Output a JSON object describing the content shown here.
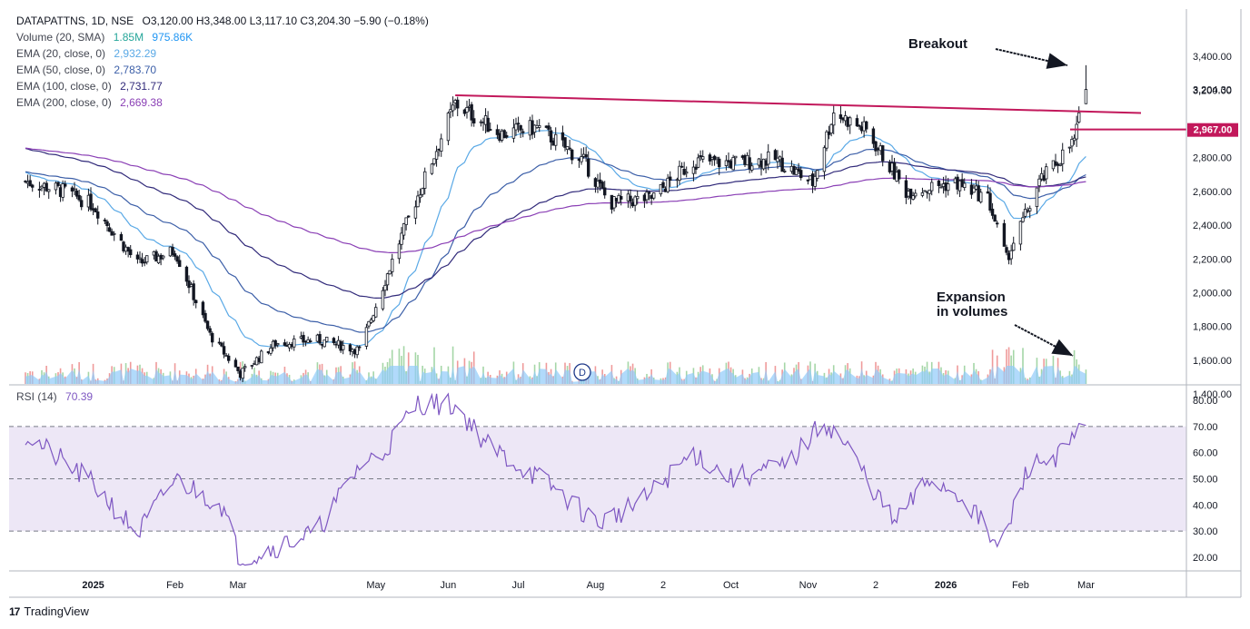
{
  "legend": {
    "symbol": "DATAPATTNS, 1D, NSE",
    "ohlc": "O3,120.00  H3,348.00  L3,117.10  C3,204.30  −5.90 (−0.18%)",
    "volume_label": "Volume (20, SMA)",
    "volume_value": "1.85M",
    "volume_sma": "975.86K",
    "ema20_label": "EMA (20, close, 0)",
    "ema20_value": "2,932.29",
    "ema50_label": "EMA (50, close, 0)",
    "ema50_value": "2,783.70",
    "ema100_label": "EMA (100, close, 0)",
    "ema100_value": "2,731.77",
    "ema200_label": "EMA (200, close, 0)",
    "ema200_value": "2,669.38"
  },
  "rsi_legend": {
    "label": "RSI (14)",
    "value": "70.39"
  },
  "annotations": {
    "breakout": "Breakout",
    "expansion_line1": "Expansion",
    "expansion_line2": "in volumes"
  },
  "price_tags": {
    "last_price": "3,204.30",
    "level": "2,967.00"
  },
  "branding": {
    "logo_text": "TradingView",
    "logo_mark": "17",
    "marker_letter": "D"
  },
  "colors": {
    "up": "#131722",
    "down": "#131722",
    "ema20": "#5aa9e6",
    "ema50": "#3c5fa8",
    "ema100": "#312a7a",
    "ema200": "#8a3fb5",
    "trendline": "#c2185b",
    "rsi": "#7e57c2",
    "rsi_band": "#ede7f6",
    "volume_area": "#90caf9"
  },
  "chart_data": [
    {
      "type": "candlestick",
      "title": "DATAPATTNS, 1D, NSE",
      "y_axis_ticks": [
        "3,400.00",
        "3,200.00",
        "2,800.00",
        "2,600.00",
        "2,400.00",
        "2,200.00",
        "2,000.00",
        "1,800.00",
        "1,600.00",
        "1,400.00"
      ],
      "x_axis_ticks": [
        "2025",
        "Feb",
        "Mar",
        "May",
        "Jun",
        "Jul",
        "Aug",
        "2",
        "Oct",
        "Nov",
        "2",
        "2026",
        "Feb",
        "Mar"
      ],
      "ylim": [
        1230,
        3450
      ],
      "close_series_approx": {
        "x": [
          "2024-12-03",
          "2024-12-20",
          "2025-01-01",
          "2025-01-20",
          "2025-02-05",
          "2025-02-20",
          "2025-03-05",
          "2025-03-20",
          "2025-04-07",
          "2025-04-25",
          "2025-05-12",
          "2025-05-30",
          "2025-06-05",
          "2025-06-25",
          "2025-07-10",
          "2025-07-30",
          "2025-08-10",
          "2025-08-28",
          "2025-09-15",
          "2025-10-01",
          "2025-10-20",
          "2025-11-05",
          "2025-11-14",
          "2025-11-28",
          "2025-12-15",
          "2026-01-05",
          "2026-01-19",
          "2026-01-27",
          "2026-02-10",
          "2026-02-25",
          "2026-03-02"
        ],
        "close": [
          2660,
          2600,
          2520,
          2170,
          2250,
          1750,
          1520,
          1700,
          1720,
          1660,
          2300,
          2920,
          3120,
          2940,
          2980,
          2780,
          2530,
          2560,
          2780,
          2770,
          2790,
          2650,
          3070,
          2960,
          2600,
          2650,
          2560,
          2200,
          2650,
          2900,
          3204.3
        ]
      },
      "ema": [
        {
          "name": "EMA (20, close, 0)",
          "last": 2932.29
        },
        {
          "name": "EMA (50, close, 0)",
          "last": 2783.7
        },
        {
          "name": "EMA (100, close, 0)",
          "last": 2731.77
        },
        {
          "name": "EMA (200, close, 0)",
          "last": 2669.38
        }
      ],
      "trendline": {
        "from": [
          "2025-06-05",
          3170
        ],
        "to": [
          "2026-03-10",
          3065
        ]
      },
      "horizontal_level": 2967.0,
      "last_price": 3204.3
    },
    {
      "type": "line",
      "title": "RSI (14)",
      "y_axis_ticks": [
        "80.00",
        "70.00",
        "60.00",
        "50.00",
        "40.00",
        "30.00",
        "20.00"
      ],
      "levels": [
        70,
        50,
        30
      ],
      "ylim": [
        15,
        85
      ],
      "series": [
        {
          "name": "RSI (14)",
          "last": 70.39,
          "x": [
            "2024-12-03",
            "2025-01-01",
            "2025-01-20",
            "2025-02-05",
            "2025-02-25",
            "2025-03-05",
            "2025-04-07",
            "2025-04-25",
            "2025-05-05",
            "2025-05-20",
            "2025-06-05",
            "2025-06-20",
            "2025-07-15",
            "2025-08-05",
            "2025-08-25",
            "2025-09-15",
            "2025-10-01",
            "2025-10-25",
            "2025-11-10",
            "2025-11-20",
            "2025-12-10",
            "2025-12-25",
            "2026-01-10",
            "2026-01-24",
            "2026-02-05",
            "2026-02-20",
            "2026-03-02"
          ],
          "values": [
            67,
            48,
            29,
            50,
            40,
            19,
            30,
            55,
            60,
            79,
            78,
            62,
            48,
            33,
            42,
            60,
            50,
            55,
            72,
            62,
            33,
            50,
            42,
            22,
            54,
            60,
            70.39
          ]
        }
      ]
    },
    {
      "type": "bar",
      "title": "Volume (20, SMA)",
      "last": "1.85M",
      "sma_last": "975.86K"
    }
  ]
}
